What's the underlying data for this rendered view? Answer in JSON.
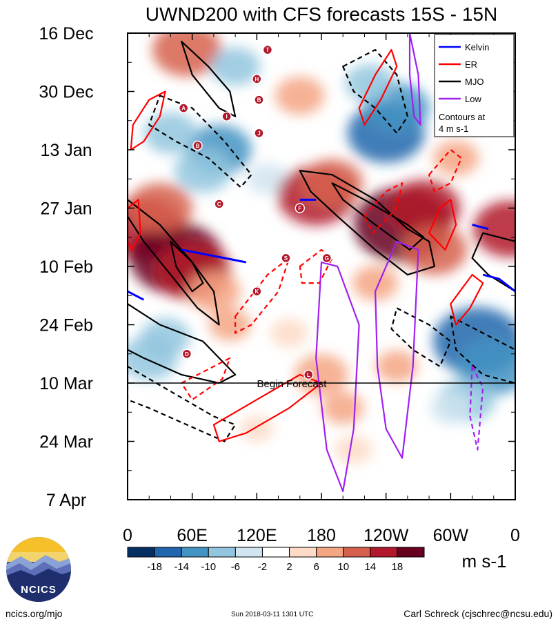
{
  "chart_data": {
    "type": "heatmap",
    "title": "UWND200 with CFS forecasts  15S - 15N",
    "y_ticks": [
      "16 Dec",
      "30 Dec",
      "13 Jan",
      "27 Jan",
      "10 Feb",
      "24 Feb",
      "10 Mar",
      "24 Mar",
      "7 Apr"
    ],
    "x_ticks": [
      "0",
      "60E",
      "120E",
      "180",
      "120W",
      "60W",
      "0"
    ],
    "x_tick_degrees": [
      0,
      60,
      120,
      180,
      240,
      300,
      360
    ],
    "ylim_days": [
      0,
      112
    ],
    "begin_forecast_day": 84,
    "begin_forecast_label": "Begin Forecast",
    "colorbar": {
      "levels": [
        -18,
        -14,
        -10,
        -6,
        -2,
        2,
        6,
        10,
        14,
        18
      ],
      "colors": [
        "#053061",
        "#2166ac",
        "#4393c3",
        "#92c5de",
        "#d1e5f0",
        "#ffffff",
        "#fddbc7",
        "#f4a582",
        "#d6604d",
        "#b2182b",
        "#67001f"
      ],
      "units": "m s-1"
    },
    "legend": {
      "entries": [
        {
          "name": "Kelvin",
          "color": "#0000ff"
        },
        {
          "name": "ER",
          "color": "#ff0000"
        },
        {
          "name": "MJO",
          "color": "#000000"
        },
        {
          "name": "Low",
          "color": "#a020f0"
        }
      ],
      "note_line1": "Contours at",
      "note_line2": "4 m s-1",
      "placement": "top-right"
    },
    "anomaly_blobs": [
      {
        "lon": 15,
        "day": 47,
        "value": 16
      },
      {
        "lon": 45,
        "day": 54,
        "value": 19
      },
      {
        "lon": 60,
        "day": 57,
        "value": 15
      },
      {
        "lon": 30,
        "day": 42,
        "value": 12
      },
      {
        "lon": 80,
        "day": 62,
        "value": 9
      },
      {
        "lon": 55,
        "day": 4,
        "value": 13
      },
      {
        "lon": 100,
        "day": 8,
        "value": -8
      },
      {
        "lon": 85,
        "day": 28,
        "value": -12
      },
      {
        "lon": 40,
        "day": 24,
        "value": -9
      },
      {
        "lon": 70,
        "day": 33,
        "value": -10
      },
      {
        "lon": 130,
        "day": 35,
        "value": -6
      },
      {
        "lon": 175,
        "day": 39,
        "value": 15
      },
      {
        "lon": 190,
        "day": 36,
        "value": 11
      },
      {
        "lon": 255,
        "day": 46,
        "value": 20
      },
      {
        "lon": 275,
        "day": 42,
        "value": 14
      },
      {
        "lon": 285,
        "day": 52,
        "value": 12
      },
      {
        "lon": 355,
        "day": 47,
        "value": 14
      },
      {
        "lon": 240,
        "day": 24,
        "value": -15
      },
      {
        "lon": 250,
        "day": 18,
        "value": -12
      },
      {
        "lon": 225,
        "day": 12,
        "value": -8
      },
      {
        "lon": 325,
        "day": 74,
        "value": -18
      },
      {
        "lon": 340,
        "day": 80,
        "value": -14
      },
      {
        "lon": 315,
        "day": 88,
        "value": -10
      },
      {
        "lon": 200,
        "day": 90,
        "value": 6
      },
      {
        "lon": 210,
        "day": 100,
        "value": 5
      },
      {
        "lon": 150,
        "day": 72,
        "value": 5
      },
      {
        "lon": 180,
        "day": 82,
        "value": 9
      },
      {
        "lon": 250,
        "day": 80,
        "value": 6
      },
      {
        "lon": 120,
        "day": 95,
        "value": 4
      },
      {
        "lon": 35,
        "day": 73,
        "value": -8
      },
      {
        "lon": 20,
        "day": 78,
        "value": -10
      },
      {
        "lon": 95,
        "day": 70,
        "value": 6
      },
      {
        "lon": 305,
        "day": 30,
        "value": 7
      },
      {
        "lon": 160,
        "day": 15,
        "value": 8
      },
      {
        "lon": 230,
        "day": 60,
        "value": 7
      },
      {
        "lon": 300,
        "day": 90,
        "value": -6
      }
    ],
    "contours": [
      {
        "type": "MJO",
        "sign": 1,
        "points": [
          [
            0,
            40
          ],
          [
            30,
            46
          ],
          [
            60,
            55
          ],
          [
            80,
            62
          ],
          [
            85,
            70
          ],
          [
            65,
            66
          ],
          [
            40,
            58
          ],
          [
            15,
            50
          ],
          [
            0,
            44
          ]
        ]
      },
      {
        "type": "MJO",
        "sign": 1,
        "points": [
          [
            40,
            50
          ],
          [
            60,
            55
          ],
          [
            70,
            60
          ],
          [
            60,
            62
          ],
          [
            45,
            56
          ]
        ]
      },
      {
        "type": "MJO",
        "sign": 1,
        "points": [
          [
            160,
            33
          ],
          [
            190,
            34
          ],
          [
            230,
            40
          ],
          [
            260,
            47
          ],
          [
            280,
            50
          ],
          [
            285,
            56
          ],
          [
            260,
            58
          ],
          [
            230,
            52
          ],
          [
            195,
            44
          ],
          [
            170,
            38
          ]
        ]
      },
      {
        "type": "MJO",
        "sign": 1,
        "points": [
          [
            190,
            36
          ],
          [
            220,
            40
          ],
          [
            260,
            46
          ],
          [
            275,
            49
          ],
          [
            262,
            52
          ],
          [
            230,
            46
          ],
          [
            200,
            40
          ]
        ]
      },
      {
        "type": "MJO",
        "sign": 1,
        "points": [
          [
            50,
            2
          ],
          [
            75,
            8
          ],
          [
            95,
            14
          ],
          [
            100,
            20
          ],
          [
            85,
            18
          ],
          [
            60,
            10
          ]
        ]
      },
      {
        "type": "MJO",
        "sign": 1,
        "points": [
          [
            330,
            48
          ],
          [
            360,
            50
          ],
          [
            360,
            62
          ],
          [
            335,
            58
          ],
          [
            320,
            54
          ]
        ]
      },
      {
        "type": "MJO",
        "sign": 1,
        "points": [
          [
            0,
            65
          ],
          [
            30,
            70
          ],
          [
            70,
            74
          ],
          [
            100,
            82
          ],
          [
            85,
            84
          ],
          [
            50,
            82
          ],
          [
            15,
            78
          ],
          [
            0,
            76
          ]
        ]
      },
      {
        "type": "MJO",
        "sign": -1,
        "points": [
          [
            30,
            15
          ],
          [
            60,
            18
          ],
          [
            90,
            26
          ],
          [
            115,
            34
          ],
          [
            105,
            37
          ],
          [
            75,
            30
          ],
          [
            45,
            26
          ],
          [
            20,
            22
          ]
        ]
      },
      {
        "type": "MJO",
        "sign": -1,
        "points": [
          [
            200,
            8
          ],
          [
            230,
            4
          ],
          [
            250,
            10
          ],
          [
            260,
            20
          ],
          [
            250,
            24
          ],
          [
            230,
            18
          ],
          [
            210,
            14
          ]
        ]
      },
      {
        "type": "MJO",
        "sign": -1,
        "points": [
          [
            0,
            80
          ],
          [
            40,
            86
          ],
          [
            80,
            92
          ],
          [
            100,
            94
          ],
          [
            90,
            98
          ],
          [
            55,
            94
          ],
          [
            20,
            90
          ],
          [
            0,
            88
          ]
        ]
      },
      {
        "type": "MJO",
        "sign": -1,
        "points": [
          [
            300,
            68
          ],
          [
            330,
            72
          ],
          [
            360,
            76
          ],
          [
            360,
            84
          ],
          [
            330,
            82
          ],
          [
            305,
            76
          ]
        ]
      },
      {
        "type": "MJO",
        "sign": -1,
        "points": [
          [
            250,
            66
          ],
          [
            280,
            70
          ],
          [
            300,
            74
          ],
          [
            290,
            80
          ],
          [
            265,
            76
          ],
          [
            245,
            71
          ]
        ]
      },
      {
        "type": "ER",
        "sign": 1,
        "points": [
          [
            5,
            22
          ],
          [
            20,
            16
          ],
          [
            35,
            14
          ],
          [
            30,
            20
          ],
          [
            15,
            26
          ],
          [
            3,
            28
          ]
        ]
      },
      {
        "type": "ER",
        "sign": 1,
        "points": [
          [
            80,
            94
          ],
          [
            120,
            88
          ],
          [
            160,
            82
          ],
          [
            180,
            84
          ],
          [
            150,
            90
          ],
          [
            110,
            96
          ],
          [
            85,
            98
          ]
        ]
      },
      {
        "type": "ER",
        "sign": 1,
        "points": [
          [
            280,
            48
          ],
          [
            290,
            42
          ],
          [
            300,
            40
          ],
          [
            305,
            46
          ],
          [
            295,
            52
          ]
        ]
      },
      {
        "type": "ER",
        "sign": 1,
        "points": [
          [
            300,
            65
          ],
          [
            320,
            58
          ],
          [
            330,
            60
          ],
          [
            318,
            66
          ],
          [
            305,
            70
          ]
        ]
      },
      {
        "type": "ER",
        "sign": 1,
        "points": [
          [
            215,
            18
          ],
          [
            230,
            10
          ],
          [
            245,
            4
          ],
          [
            250,
            8
          ],
          [
            235,
            16
          ],
          [
            220,
            22
          ]
        ]
      },
      {
        "type": "ER",
        "sign": 1,
        "points": [
          [
            0,
            42
          ],
          [
            10,
            40
          ],
          [
            12,
            48
          ],
          [
            4,
            52
          ],
          [
            0,
            50
          ]
        ]
      },
      {
        "type": "ER",
        "sign": -1,
        "points": [
          [
            100,
            68
          ],
          [
            130,
            58
          ],
          [
            150,
            54
          ],
          [
            140,
            62
          ],
          [
            115,
            70
          ],
          [
            100,
            72
          ]
        ]
      },
      {
        "type": "ER",
        "sign": -1,
        "points": [
          [
            50,
            84
          ],
          [
            80,
            80
          ],
          [
            95,
            78
          ],
          [
            88,
            83
          ],
          [
            60,
            88
          ]
        ]
      },
      {
        "type": "ER",
        "sign": -1,
        "points": [
          [
            220,
            44
          ],
          [
            240,
            38
          ],
          [
            255,
            36
          ],
          [
            250,
            42
          ],
          [
            228,
            48
          ]
        ]
      },
      {
        "type": "ER",
        "sign": -1,
        "points": [
          [
            280,
            34
          ],
          [
            300,
            28
          ],
          [
            310,
            30
          ],
          [
            300,
            36
          ],
          [
            285,
            38
          ]
        ]
      },
      {
        "type": "ER",
        "sign": -1,
        "points": [
          [
            160,
            56
          ],
          [
            180,
            52
          ],
          [
            190,
            54
          ],
          [
            178,
            60
          ],
          [
            162,
            60
          ]
        ]
      },
      {
        "type": "Kelvin",
        "sign": 1,
        "points": [
          [
            50,
            52
          ],
          [
            70,
            53
          ],
          [
            90,
            54
          ],
          [
            110,
            55
          ]
        ]
      },
      {
        "type": "Kelvin",
        "sign": 1,
        "points": [
          [
            160,
            40
          ],
          [
            175,
            40
          ]
        ]
      },
      {
        "type": "Kelvin",
        "sign": 1,
        "points": [
          [
            330,
            58
          ],
          [
            345,
            59
          ],
          [
            360,
            62
          ]
        ]
      },
      {
        "type": "Kelvin",
        "sign": 1,
        "points": [
          [
            320,
            46
          ],
          [
            335,
            47
          ]
        ]
      },
      {
        "type": "Kelvin",
        "sign": 1,
        "points": [
          [
            0,
            62
          ],
          [
            15,
            64
          ]
        ]
      },
      {
        "type": "Low",
        "sign": 1,
        "points": [
          [
            180,
            55
          ],
          [
            195,
            56
          ],
          [
            215,
            70
          ],
          [
            210,
            95
          ],
          [
            200,
            110
          ],
          [
            185,
            100
          ],
          [
            175,
            78
          ]
        ]
      },
      {
        "type": "Low",
        "sign": 1,
        "points": [
          [
            230,
            62
          ],
          [
            250,
            50
          ],
          [
            270,
            52
          ],
          [
            265,
            80
          ],
          [
            255,
            102
          ],
          [
            240,
            95
          ],
          [
            232,
            80
          ]
        ]
      },
      {
        "type": "Low",
        "sign": 1,
        "points": [
          [
            262,
            0
          ],
          [
            270,
            10
          ],
          [
            272,
            22
          ],
          [
            266,
            20
          ],
          [
            262,
            10
          ]
        ]
      },
      {
        "type": "Low",
        "sign": -1,
        "points": [
          [
            320,
            80
          ],
          [
            330,
            85
          ],
          [
            325,
            100
          ],
          [
            318,
            92
          ]
        ]
      }
    ],
    "storm_markers": [
      {
        "label": "T",
        "lon": 130,
        "day": 4
      },
      {
        "label": "H",
        "lon": 120,
        "day": 11
      },
      {
        "label": "B",
        "lon": 122,
        "day": 16
      },
      {
        "label": "A",
        "lon": 52,
        "day": 18
      },
      {
        "label": "I",
        "lon": 92,
        "day": 20
      },
      {
        "label": "J",
        "lon": 122,
        "day": 24
      },
      {
        "label": "B",
        "lon": 65,
        "day": 27
      },
      {
        "label": "C",
        "lon": 85,
        "day": 41
      },
      {
        "label": "F",
        "lon": 160,
        "day": 42
      },
      {
        "label": "S",
        "lon": 147,
        "day": 54
      },
      {
        "label": "G",
        "lon": 185,
        "day": 54
      },
      {
        "label": "K",
        "lon": 120,
        "day": 62
      },
      {
        "label": "D",
        "lon": 55,
        "day": 77
      },
      {
        "label": "L",
        "lon": 168,
        "day": 82
      }
    ]
  },
  "footer": {
    "left": "ncics.org/mjo",
    "center": "Sun 2018-03-11 1301 UTC",
    "right": "Carl Schreck (cjschrec@ncsu.edu)"
  },
  "logo_text": "NCICS"
}
